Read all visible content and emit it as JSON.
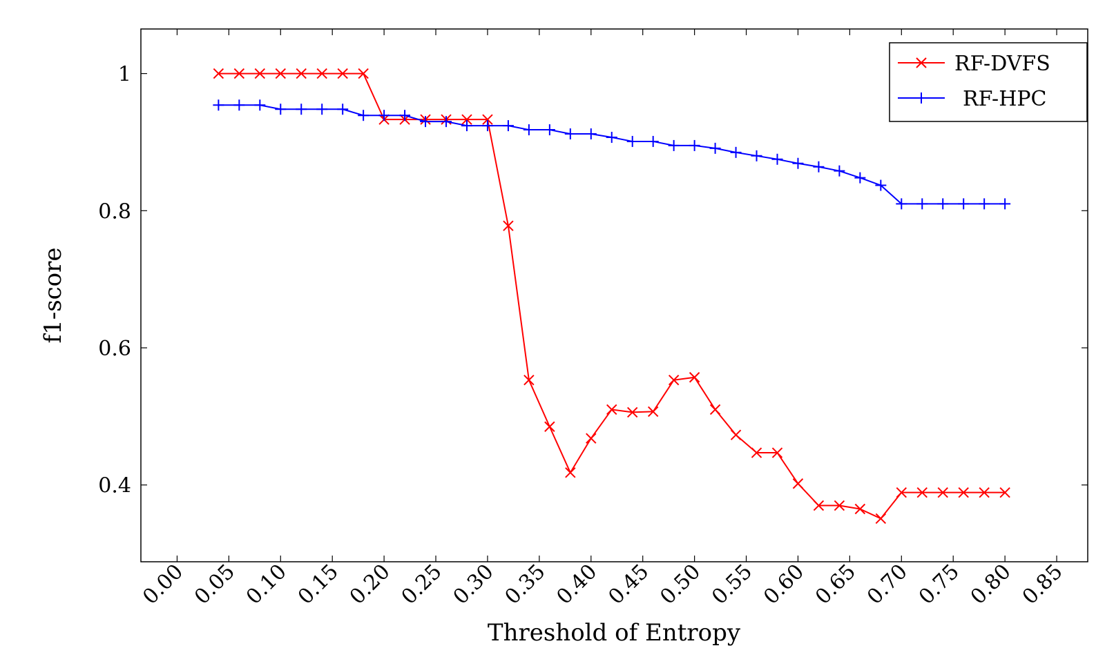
{
  "chart_data": {
    "type": "line",
    "xlabel": "Threshold of Entropy",
    "ylabel": "f1-score",
    "xlim": [
      -0.035,
      0.88
    ],
    "ylim": [
      0.288,
      1.065
    ],
    "xticks": [
      0.0,
      0.05,
      0.1,
      0.15,
      0.2,
      0.25,
      0.3,
      0.35,
      0.4,
      0.45,
      0.5,
      0.55,
      0.6,
      0.65,
      0.7,
      0.75,
      0.8,
      0.85
    ],
    "xtick_labels": [
      "0.00",
      "0.05",
      "0.10",
      "0.15",
      "0.20",
      "0.25",
      "0.30",
      "0.35",
      "0.40",
      "0.45",
      "0.50",
      "0.55",
      "0.60",
      "0.65",
      "0.70",
      "0.75",
      "0.80",
      "0.85"
    ],
    "yticks": [
      0.4,
      0.6,
      0.8,
      1.0
    ],
    "ytick_labels": [
      "0.4",
      "0.6",
      "0.8",
      "1"
    ],
    "grid": false,
    "legend_position": "top-right",
    "x": [
      0.04,
      0.06,
      0.08,
      0.1,
      0.12,
      0.14,
      0.16,
      0.18,
      0.2,
      0.22,
      0.24,
      0.26,
      0.28,
      0.3,
      0.32,
      0.34,
      0.36,
      0.38,
      0.4,
      0.42,
      0.44,
      0.46,
      0.48,
      0.5,
      0.52,
      0.54,
      0.56,
      0.58,
      0.6,
      0.62,
      0.64,
      0.66,
      0.68,
      0.7,
      0.72,
      0.74,
      0.76,
      0.78,
      0.8
    ],
    "series": [
      {
        "name": "RF-DVFS",
        "color": "#ff0000",
        "marker": "x",
        "values": [
          1.0,
          1.0,
          1.0,
          1.0,
          1.0,
          1.0,
          1.0,
          1.0,
          0.933,
          0.933,
          0.933,
          0.933,
          0.933,
          0.933,
          0.778,
          0.553,
          0.485,
          0.418,
          0.468,
          0.51,
          0.506,
          0.507,
          0.553,
          0.557,
          0.51,
          0.473,
          0.447,
          0.447,
          0.402,
          0.37,
          0.37,
          0.365,
          0.351,
          0.389,
          0.389,
          0.389,
          0.389,
          0.389,
          0.389
        ]
      },
      {
        "name": "RF-HPC",
        "color": "#0000ff",
        "marker": "+",
        "values": [
          0.954,
          0.954,
          0.954,
          0.948,
          0.948,
          0.948,
          0.948,
          0.939,
          0.939,
          0.939,
          0.93,
          0.93,
          0.924,
          0.924,
          0.924,
          0.918,
          0.918,
          0.912,
          0.912,
          0.907,
          0.901,
          0.901,
          0.895,
          0.895,
          0.891,
          0.885,
          0.88,
          0.875,
          0.869,
          0.864,
          0.858,
          0.848,
          0.837,
          0.81,
          0.81,
          0.81,
          0.81,
          0.81,
          0.81
        ]
      }
    ]
  }
}
